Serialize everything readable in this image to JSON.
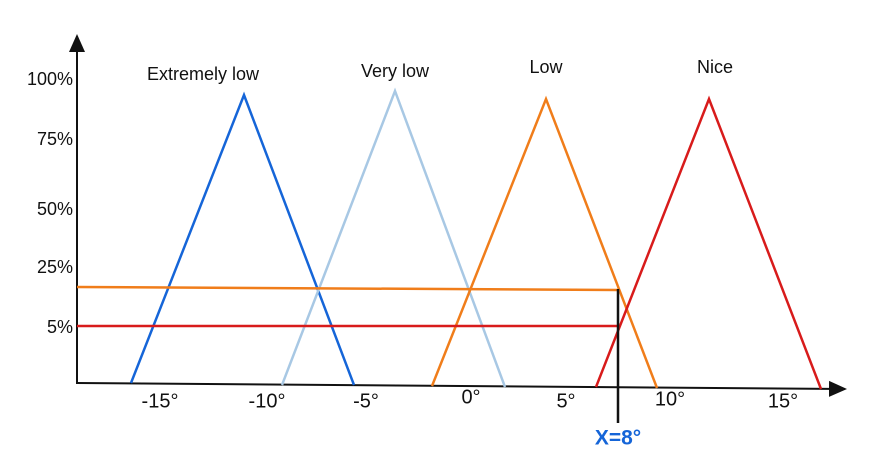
{
  "y_axis": {
    "labels": [
      "100%",
      "75%",
      "50%",
      "25%",
      "5%"
    ]
  },
  "x_axis": {
    "labels": [
      "-15°",
      "-10°",
      "-5°",
      "0°",
      "5°",
      "10°",
      "15°"
    ]
  },
  "sets": [
    {
      "label": "Extremely low"
    },
    {
      "label": "Very low"
    },
    {
      "label": "Low"
    },
    {
      "label": "Nice"
    }
  ],
  "marker": {
    "label": "X=8°"
  }
}
